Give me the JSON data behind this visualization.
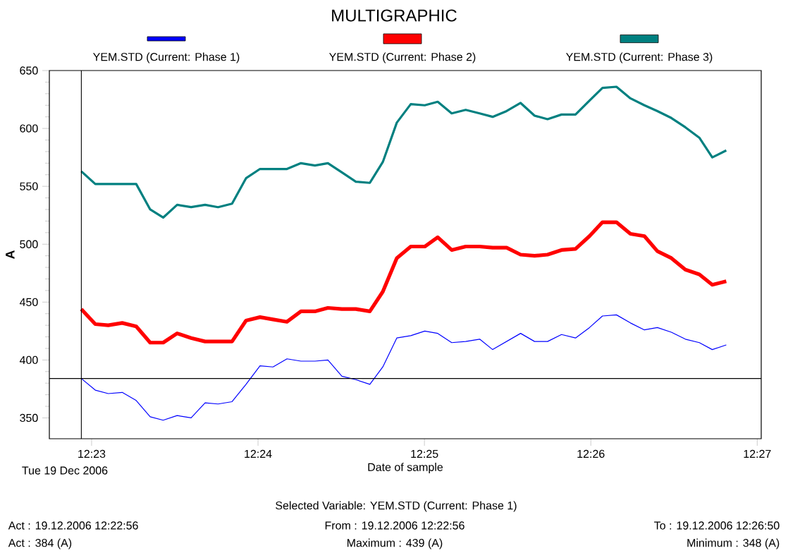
{
  "chart_data": {
    "type": "line",
    "title": "MULTIGRAPHIC",
    "xlabel": "Date of sample",
    "ylabel": "A",
    "x": [
      12.3823,
      12.3837,
      12.385,
      12.3864,
      12.3878,
      12.3892,
      12.3905,
      12.3919,
      12.3933,
      12.3947,
      12.396,
      12.3974,
      12.3988,
      12.4002,
      12.4015,
      12.4029,
      12.4043,
      12.4057,
      12.407,
      12.4084,
      12.4098,
      12.4112,
      12.4125,
      12.4139,
      12.4153,
      12.4167,
      12.418,
      12.4194,
      12.4208,
      12.4222,
      12.4235,
      12.4249,
      12.4263,
      12.4277,
      12.429,
      12.4304,
      12.4318,
      12.4332,
      12.4345,
      12.4359,
      12.4373,
      12.4387,
      12.44,
      12.4414,
      12.4428,
      12.4442,
      12.4455,
      12.4469
    ],
    "series": [
      {
        "name": "YEM.STD (Current: Phase 1)",
        "color": "#0000ff",
        "values": [
          384,
          374,
          371,
          372,
          365,
          351,
          348,
          352,
          350,
          363,
          362,
          364,
          379,
          395,
          394,
          401,
          399,
          399,
          400,
          386,
          383,
          379,
          394,
          419,
          421,
          425,
          423,
          415,
          416,
          418,
          409,
          416,
          423,
          416,
          416,
          422,
          419,
          428,
          438,
          439,
          432,
          426,
          428,
          424,
          418,
          415,
          409,
          413
        ]
      },
      {
        "name": "YEM.STD (Current: Phase 2)",
        "color": "#ff0000",
        "values": [
          444,
          431,
          430,
          432,
          429,
          415,
          415,
          423,
          419,
          416,
          416,
          416,
          434,
          437,
          435,
          433,
          442,
          442,
          445,
          444,
          444,
          442,
          459,
          488,
          498,
          498,
          506,
          495,
          498,
          498,
          497,
          497,
          491,
          490,
          491,
          495,
          496,
          507,
          519,
          519,
          509,
          507,
          494,
          488,
          478,
          474,
          465,
          468
        ]
      },
      {
        "name": "YEM.STD (Current: Phase 3)",
        "color": "#008080",
        "values": [
          563,
          552,
          552,
          552,
          552,
          530,
          523,
          534,
          532,
          534,
          532,
          535,
          557,
          565,
          565,
          565,
          570,
          568,
          570,
          562,
          554,
          553,
          571,
          605,
          621,
          620,
          623,
          613,
          616,
          613,
          610,
          615,
          622,
          611,
          608,
          612,
          612,
          624,
          635,
          636,
          626,
          620,
          615,
          609,
          601,
          592,
          575,
          581
        ]
      }
    ],
    "xlim": [
      12.3791,
      12.4504
    ],
    "xticks": [
      {
        "value": 12.383333,
        "label": "12:23"
      },
      {
        "value": 12.4,
        "label": "12:24"
      },
      {
        "value": 12.416667,
        "label": "12:25"
      },
      {
        "value": 12.433333,
        "label": "12:26"
      },
      {
        "value": 12.45,
        "label": "12:27"
      }
    ],
    "ylim": [
      332,
      650
    ],
    "yticks": [
      350,
      400,
      450,
      500,
      550,
      600,
      650
    ],
    "ref_lines": [
      {
        "axis": "x",
        "value": 12.3823,
        "label": null,
        "color": "#000000"
      },
      {
        "axis": "y",
        "value": 384,
        "label": null,
        "color": "#000000"
      }
    ],
    "legend": "top",
    "annotations": [
      "Tue 19 Dec 2006",
      "Selected Variable: YEM.STD (Current: Phase 1)",
      "Act : 19.12.2006 12:22:56",
      "From : 19.12.2006 12:22:56",
      "To : 19.12.2006 12:26:50",
      "Act : 384 (A)",
      "Maximum : 439 (A)",
      "Minimum : 348 (A)"
    ]
  }
}
